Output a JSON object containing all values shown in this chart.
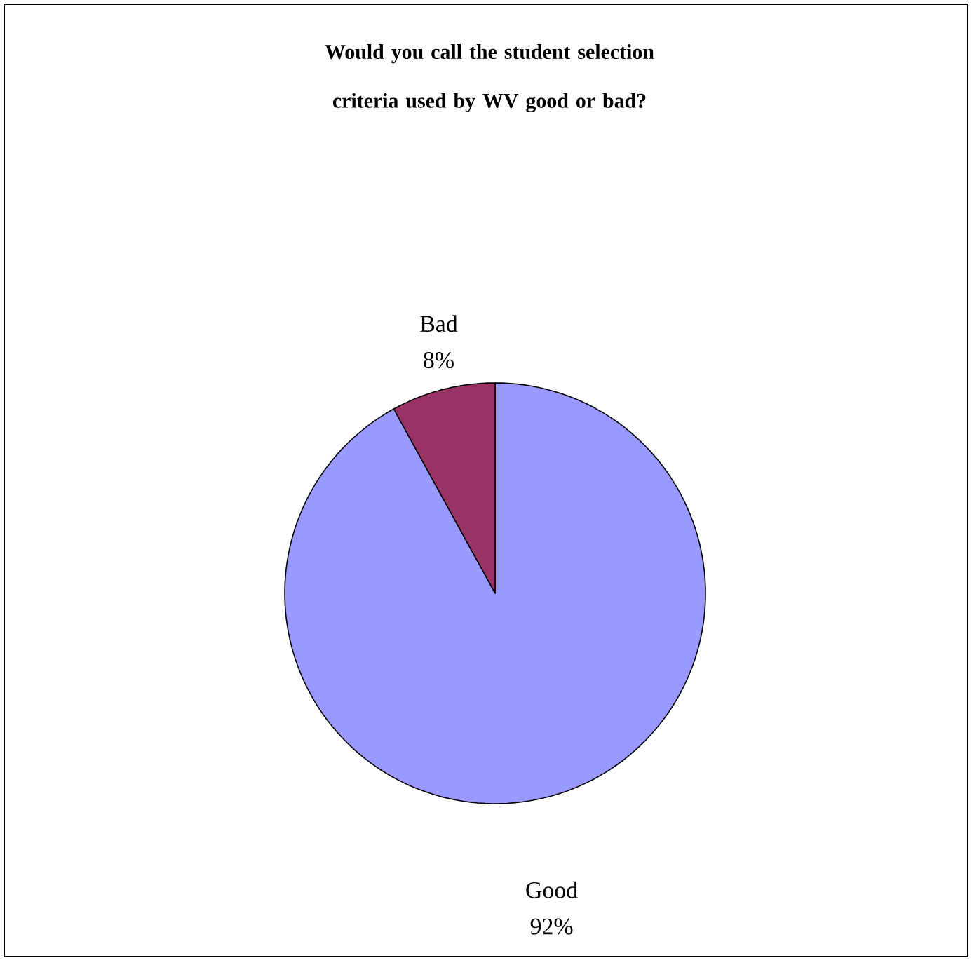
{
  "chart_data": {
    "type": "pie",
    "title": "Would you call the student selection criteria used by WV good or bad?",
    "categories": [
      "Good",
      "Bad"
    ],
    "values": [
      92,
      8
    ],
    "colors": [
      "#9999ff",
      "#993366"
    ],
    "value_labels": [
      "92%",
      "8%"
    ]
  }
}
